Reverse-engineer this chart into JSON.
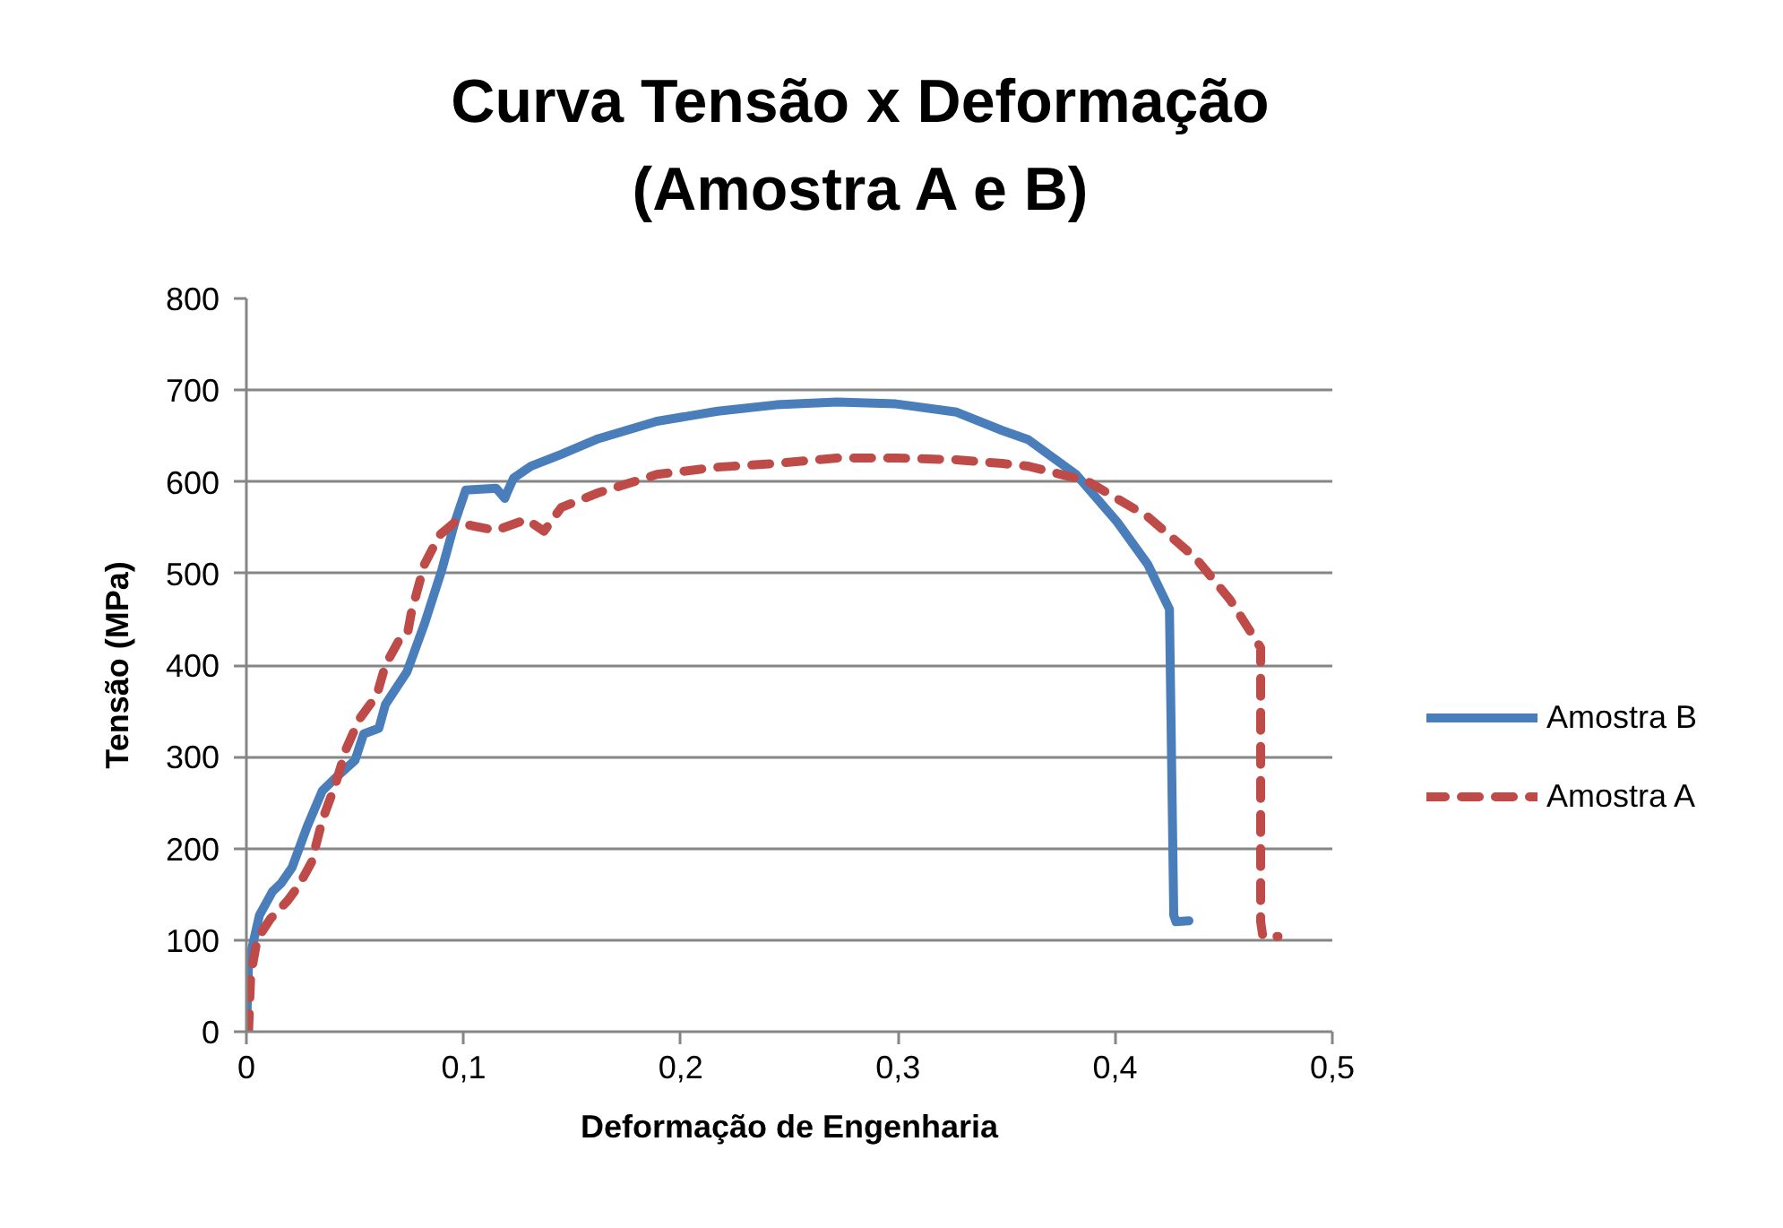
{
  "chart_data": {
    "type": "line",
    "title": "Curva Tensão x Deformação\n(Amostra A e B)",
    "xlabel": "Deformação de Engenharia",
    "ylabel": "Tensão (MPa)",
    "xlim": [
      0,
      0.5
    ],
    "ylim": [
      0,
      800
    ],
    "xticks": [
      0,
      {
        "value": 0.1,
        "label": "0,1"
      },
      {
        "value": 0.2,
        "label": "0,2"
      },
      {
        "value": 0.3,
        "label": "0,3"
      },
      {
        "value": 0.4,
        "label": "0,4"
      },
      {
        "value": 0.5,
        "label": "0,5"
      }
    ],
    "yticks": [
      0,
      100,
      200,
      300,
      400,
      500,
      600,
      700,
      800
    ],
    "grid": "y",
    "legend": "right",
    "series": [
      {
        "name": "Amostra B",
        "color": "#4a7ebb",
        "line_style": "solid",
        "x": [
          0,
          0.001,
          0.006,
          0.012,
          0.016,
          0.021,
          0.028,
          0.035,
          0.042,
          0.05,
          0.054,
          0.061,
          0.064,
          0.074,
          0.082,
          0.09,
          0.096,
          0.101,
          0.115,
          0.119,
          0.12,
          0.123,
          0.131,
          0.145,
          0.162,
          0.189,
          0.217,
          0.244,
          0.272,
          0.299,
          0.327,
          0.348,
          0.36,
          0.382,
          0.401,
          0.415,
          0.425,
          0.427,
          0.428,
          0.434
        ],
        "values": [
          0,
          75,
          127,
          153,
          162,
          179,
          224,
          263,
          279,
          296,
          325,
          331,
          357,
          393,
          445,
          504,
          556,
          591,
          593,
          582,
          588,
          604,
          617,
          630,
          647,
          666,
          677,
          684,
          687,
          685,
          676,
          656,
          646,
          608,
          556,
          510,
          461,
          127,
          120,
          121
        ]
      },
      {
        "name": "Amostra A",
        "color": "#be4b48",
        "line_style": "dashed",
        "x": [
          0.001,
          0.002,
          0.005,
          0.011,
          0.019,
          0.024,
          0.03,
          0.035,
          0.041,
          0.046,
          0.052,
          0.06,
          0.064,
          0.07,
          0.074,
          0.076,
          0.082,
          0.089,
          0.096,
          0.104,
          0.115,
          0.129,
          0.137,
          0.145,
          0.162,
          0.189,
          0.217,
          0.244,
          0.272,
          0.299,
          0.327,
          0.348,
          0.36,
          0.387,
          0.415,
          0.437,
          0.453,
          0.467,
          0.467,
          0.468,
          0.475
        ],
        "values": [
          0,
          62,
          101,
          123,
          143,
          159,
          185,
          231,
          270,
          309,
          341,
          367,
          400,
          426,
          432,
          458,
          510,
          542,
          556,
          552,
          547,
          559,
          546,
          572,
          588,
          608,
          616,
          620,
          626,
          626,
          624,
          620,
          617,
          601,
          562,
          517,
          471,
          419,
          120,
          104,
          104
        ]
      }
    ]
  }
}
